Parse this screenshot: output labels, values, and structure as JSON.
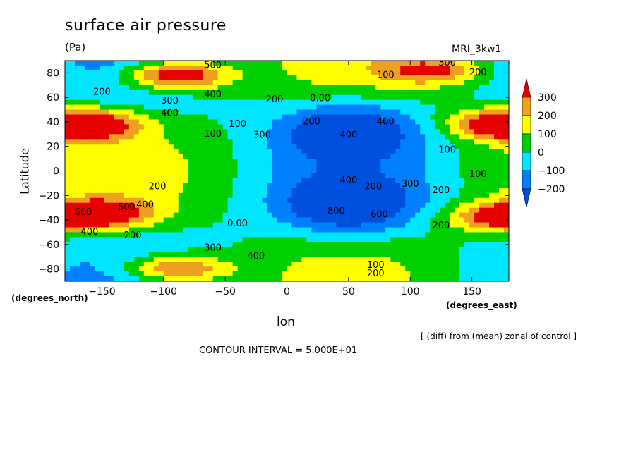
{
  "chart_data": {
    "type": "contour",
    "title": "surface air pressure",
    "units": "(Pa)",
    "model": "MRI_3kw1",
    "xlabel": "lon",
    "ylabel": "Latitude",
    "x_axis_unit": "(degrees_east)",
    "y_axis_unit": "(degrees_north)",
    "xlim": [
      -180,
      180
    ],
    "ylim": [
      -90,
      90
    ],
    "x_ticks": [
      -150,
      -100,
      -50,
      0,
      50,
      100,
      150
    ],
    "x_tick_labels": [
      "−150",
      "−100",
      "−50",
      "0",
      "50",
      "100",
      "150"
    ],
    "y_ticks": [
      80,
      60,
      40,
      20,
      0,
      -20,
      -40,
      -60,
      -80
    ],
    "y_tick_labels": [
      "80",
      "60",
      "40",
      "20",
      "0",
      "−20",
      "−40",
      "−60",
      "−80"
    ],
    "colorbar": {
      "levels": [
        300,
        200,
        100,
        0,
        -100,
        -200
      ],
      "labels": [
        "300",
        "200",
        "100",
        "0",
        "−100",
        "−200"
      ],
      "colors": [
        "#e60000",
        "#f0a020",
        "#ffff00",
        "#00d000",
        "#00e6ff",
        "#0080ff",
        "#0050e0"
      ]
    },
    "field_features": [
      {
        "type": "high",
        "lon": -90,
        "lat": 78,
        "value": 500
      },
      {
        "type": "high",
        "lon": -160,
        "lat": 38,
        "value": 400
      },
      {
        "type": "high",
        "lon": -150,
        "lat": -35,
        "value": 400
      },
      {
        "type": "high",
        "lon": -90,
        "lat": -80,
        "value": 400
      },
      {
        "type": "high",
        "lon": 120,
        "lat": 82,
        "value": 300
      },
      {
        "type": "high",
        "lon": 170,
        "lat": 38,
        "value": 300
      },
      {
        "type": "high",
        "lon": 170,
        "lat": -38,
        "value": 300
      },
      {
        "type": "low",
        "lon": 50,
        "lat": 35,
        "value": -300
      },
      {
        "type": "low",
        "lon": 50,
        "lat": -30,
        "value": -300
      }
    ],
    "contour_labels": [
      {
        "text": "500",
        "lon": -60,
        "lat": 84
      },
      {
        "text": "400",
        "lon": -60,
        "lat": 60
      },
      {
        "text": "300",
        "lon": -95,
        "lat": 55
      },
      {
        "text": "200",
        "lon": -150,
        "lat": 62
      },
      {
        "text": "200",
        "lon": -10,
        "lat": 56
      },
      {
        "text": "100",
        "lon": 80,
        "lat": 76
      },
      {
        "text": "300",
        "lon": 130,
        "lat": 86
      },
      {
        "text": "200",
        "lon": 155,
        "lat": 78
      },
      {
        "text": "400",
        "lon": -95,
        "lat": 45
      },
      {
        "text": "100",
        "lon": -60,
        "lat": 28
      },
      {
        "text": "0.00",
        "lon": 27,
        "lat": 57
      },
      {
        "text": "100",
        "lon": -40,
        "lat": 36
      },
      {
        "text": "300",
        "lon": -20,
        "lat": 27
      },
      {
        "text": "400",
        "lon": 50,
        "lat": 27
      },
      {
        "text": "400",
        "lon": 80,
        "lat": 38
      },
      {
        "text": "200",
        "lon": 20,
        "lat": 38
      },
      {
        "text": "100",
        "lon": 130,
        "lat": 15
      },
      {
        "text": "100",
        "lon": 155,
        "lat": -5
      },
      {
        "text": "200",
        "lon": -105,
        "lat": -15
      },
      {
        "text": "400",
        "lon": 50,
        "lat": -10
      },
      {
        "text": "300",
        "lon": 100,
        "lat": -13
      },
      {
        "text": "200",
        "lon": 125,
        "lat": -18
      },
      {
        "text": "200",
        "lon": 70,
        "lat": -15
      },
      {
        "text": "500",
        "lon": -130,
        "lat": -32
      },
      {
        "text": "400",
        "lon": -115,
        "lat": -30
      },
      {
        "text": "600",
        "lon": -165,
        "lat": -36
      },
      {
        "text": "800",
        "lon": 40,
        "lat": -35
      },
      {
        "text": "600",
        "lon": 75,
        "lat": -38
      },
      {
        "text": "0.00",
        "lon": -40,
        "lat": -45
      },
      {
        "text": "200",
        "lon": 125,
        "lat": -47
      },
      {
        "text": "400",
        "lon": -160,
        "lat": -52
      },
      {
        "text": "200",
        "lon": -125,
        "lat": -55
      },
      {
        "text": "300",
        "lon": -60,
        "lat": -65
      },
      {
        "text": "400",
        "lon": -25,
        "lat": -72
      },
      {
        "text": "100",
        "lon": 72,
        "lat": -79
      },
      {
        "text": "200",
        "lon": 72,
        "lat": -86
      }
    ]
  },
  "notes": {
    "diff": "[ (diff) from (mean) zonal of control ]",
    "contour_interval": "CONTOUR INTERVAL = 5.000E+01"
  }
}
